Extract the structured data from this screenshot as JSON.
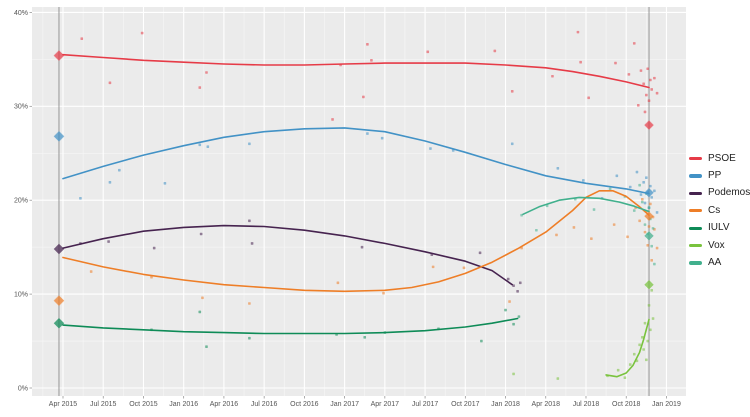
{
  "chart_data": {
    "type": "scatter",
    "subtype": "polling-average-with-trend-lines",
    "title": "",
    "xlabel": "",
    "ylabel": "",
    "x_unit": "months_since_Apr_2015",
    "ylim": [
      0,
      40
    ],
    "grid": "major and minor white gridlines on light-gray panel",
    "legend_position": "right",
    "panel_color": "#ebebeb",
    "gridline_color": "#ffffff",
    "election_line_color": "#8c8c8c",
    "axis_text_color": "#555555",
    "election_lines_months": [
      -0.3,
      43.7
    ],
    "y_ticks": [
      {
        "pct": 0,
        "label": "0%"
      },
      {
        "pct": 10,
        "label": "10%"
      },
      {
        "pct": 20,
        "label": "20%"
      },
      {
        "pct": 30,
        "label": "30%"
      },
      {
        "pct": 40,
        "label": "40%"
      }
    ],
    "x_ticks": [
      {
        "month": 0,
        "label": "Apr 2015"
      },
      {
        "month": 3,
        "label": "Jul 2015"
      },
      {
        "month": 6,
        "label": "Oct 2015"
      },
      {
        "month": 9,
        "label": "Jan 2016"
      },
      {
        "month": 12,
        "label": "Apr 2016"
      },
      {
        "month": 15,
        "label": "Jul 2016"
      },
      {
        "month": 18,
        "label": "Oct 2016"
      },
      {
        "month": 21,
        "label": "Jan 2017"
      },
      {
        "month": 24,
        "label": "Apr 2017"
      },
      {
        "month": 27,
        "label": "Jul 2017"
      },
      {
        "month": 30,
        "label": "Oct 2017"
      },
      {
        "month": 33,
        "label": "Jan 2018"
      },
      {
        "month": 36,
        "label": "Apr 2018"
      },
      {
        "month": 39,
        "label": "Jul 2018"
      },
      {
        "month": 42,
        "label": "Oct 2018"
      },
      {
        "month": 45,
        "label": "Jan 2019"
      }
    ],
    "series": [
      {
        "name": "PSOE",
        "color": "#e63b47",
        "trend": [
          [
            0,
            35.5
          ],
          [
            3,
            35.2
          ],
          [
            6,
            34.9
          ],
          [
            9,
            34.7
          ],
          [
            12,
            34.5
          ],
          [
            15,
            34.4
          ],
          [
            18,
            34.4
          ],
          [
            21,
            34.5
          ],
          [
            24,
            34.6
          ],
          [
            27,
            34.6
          ],
          [
            30,
            34.6
          ],
          [
            33,
            34.4
          ],
          [
            36,
            34.1
          ],
          [
            38,
            33.7
          ],
          [
            40,
            33.2
          ],
          [
            42,
            32.6
          ],
          [
            43.7,
            32.0
          ]
        ],
        "points": [
          [
            1.4,
            37.2
          ],
          [
            3.5,
            32.5
          ],
          [
            5.9,
            37.8
          ],
          [
            10.2,
            32.0
          ],
          [
            10.7,
            33.6
          ],
          [
            20.1,
            28.6
          ],
          [
            20.7,
            34.4
          ],
          [
            22.4,
            31.0
          ],
          [
            22.7,
            36.6
          ],
          [
            23.0,
            34.9
          ],
          [
            27.2,
            35.8
          ],
          [
            32.2,
            35.9
          ],
          [
            33.5,
            31.6
          ],
          [
            36.5,
            33.2
          ],
          [
            38.4,
            37.9
          ],
          [
            38.6,
            34.7
          ],
          [
            39.2,
            30.9
          ],
          [
            41.2,
            34.6
          ],
          [
            42.2,
            33.4
          ],
          [
            42.6,
            36.7
          ],
          [
            42.9,
            30.1
          ],
          [
            43.1,
            33.8
          ],
          [
            43.3,
            32.4
          ],
          [
            43.4,
            29.4
          ],
          [
            43.5,
            31.2
          ],
          [
            43.6,
            34.0
          ],
          [
            43.7,
            30.6
          ],
          [
            43.8,
            32.8
          ],
          [
            43.9,
            31.8
          ],
          [
            44.1,
            33.0
          ],
          [
            44.3,
            31.4
          ]
        ],
        "results": [
          [
            -0.3,
            35.4
          ],
          [
            43.7,
            28.0
          ]
        ]
      },
      {
        "name": "PP",
        "color": "#4292c6",
        "trend": [
          [
            0,
            22.3
          ],
          [
            3,
            23.6
          ],
          [
            6,
            24.8
          ],
          [
            9,
            25.8
          ],
          [
            12,
            26.7
          ],
          [
            15,
            27.3
          ],
          [
            18,
            27.6
          ],
          [
            21,
            27.7
          ],
          [
            24,
            27.3
          ],
          [
            27,
            26.3
          ],
          [
            30,
            25.1
          ],
          [
            33,
            23.8
          ],
          [
            36,
            22.6
          ],
          [
            39,
            21.8
          ],
          [
            42,
            21.2
          ],
          [
            43.7,
            20.7
          ]
        ],
        "points": [
          [
            1.3,
            20.2
          ],
          [
            3.5,
            21.9
          ],
          [
            4.2,
            23.2
          ],
          [
            7.6,
            21.8
          ],
          [
            10.2,
            25.9
          ],
          [
            10.8,
            25.7
          ],
          [
            13.9,
            26.0
          ],
          [
            22.7,
            27.1
          ],
          [
            23.8,
            26.6
          ],
          [
            27.4,
            25.5
          ],
          [
            29.1,
            25.3
          ],
          [
            33.5,
            26.0
          ],
          [
            36.9,
            23.4
          ],
          [
            38.8,
            22.1
          ],
          [
            40.2,
            20.2
          ],
          [
            41.3,
            22.6
          ],
          [
            42.3,
            21.4
          ],
          [
            42.8,
            23.0
          ],
          [
            43.1,
            20.6
          ],
          [
            43.3,
            21.9
          ],
          [
            43.4,
            19.7
          ],
          [
            43.5,
            22.4
          ],
          [
            43.6,
            20.9
          ],
          [
            43.7,
            19.2
          ],
          [
            43.8,
            21.5
          ],
          [
            43.9,
            20.3
          ],
          [
            44.1,
            21.0
          ],
          [
            44.3,
            18.7
          ]
        ],
        "results": [
          [
            -0.3,
            26.8
          ],
          [
            43.7,
            20.8
          ]
        ]
      },
      {
        "name": "Podemos",
        "color": "#46234f",
        "trend": [
          [
            0,
            14.9
          ],
          [
            3,
            15.9
          ],
          [
            6,
            16.7
          ],
          [
            9,
            17.1
          ],
          [
            12,
            17.3
          ],
          [
            15,
            17.2
          ],
          [
            18,
            16.8
          ],
          [
            21,
            16.2
          ],
          [
            24,
            15.4
          ],
          [
            27,
            14.5
          ],
          [
            30,
            13.5
          ],
          [
            32,
            12.5
          ],
          [
            33.5,
            11.0
          ]
        ],
        "points": [
          [
            1.3,
            15.4
          ],
          [
            3.4,
            15.6
          ],
          [
            6.8,
            14.9
          ],
          [
            10.3,
            16.4
          ],
          [
            13.9,
            17.8
          ],
          [
            14.1,
            15.4
          ],
          [
            22.3,
            15.0
          ],
          [
            27.5,
            14.2
          ],
          [
            31.1,
            14.4
          ],
          [
            33.2,
            11.6
          ],
          [
            33.6,
            10.9
          ],
          [
            33.9,
            10.3
          ],
          [
            34.1,
            11.2
          ]
        ],
        "results": [
          [
            -0.3,
            14.8
          ]
        ]
      },
      {
        "name": "Cs",
        "color": "#ee7e27",
        "trend": [
          [
            0,
            13.9
          ],
          [
            3,
            12.9
          ],
          [
            6,
            12.1
          ],
          [
            9,
            11.5
          ],
          [
            12,
            11.0
          ],
          [
            15,
            10.7
          ],
          [
            18,
            10.4
          ],
          [
            21,
            10.3
          ],
          [
            24,
            10.4
          ],
          [
            26,
            10.7
          ],
          [
            28,
            11.3
          ],
          [
            30,
            12.2
          ],
          [
            32,
            13.4
          ],
          [
            34,
            14.9
          ],
          [
            36,
            16.6
          ],
          [
            38,
            18.9
          ],
          [
            39,
            20.3
          ],
          [
            40,
            21.0
          ],
          [
            41,
            21.0
          ],
          [
            42,
            20.4
          ],
          [
            43,
            19.3
          ],
          [
            43.7,
            18.4
          ]
        ],
        "points": [
          [
            2.1,
            12.4
          ],
          [
            6.6,
            11.8
          ],
          [
            10.4,
            9.6
          ],
          [
            13.9,
            9.0
          ],
          [
            20.5,
            11.2
          ],
          [
            23.9,
            10.1
          ],
          [
            27.6,
            12.9
          ],
          [
            29.9,
            12.8
          ],
          [
            33.3,
            9.2
          ],
          [
            34.2,
            14.9
          ],
          [
            36.8,
            16.3
          ],
          [
            38.1,
            17.1
          ],
          [
            39.4,
            15.9
          ],
          [
            41.1,
            17.4
          ],
          [
            42.1,
            16.1
          ],
          [
            42.7,
            19.2
          ],
          [
            43.0,
            17.8
          ],
          [
            43.2,
            20.1
          ],
          [
            43.4,
            16.6
          ],
          [
            43.5,
            18.8
          ],
          [
            43.6,
            15.2
          ],
          [
            43.7,
            17.2
          ],
          [
            43.8,
            19.6
          ],
          [
            43.9,
            13.6
          ],
          [
            44.0,
            18.2
          ],
          [
            44.1,
            16.9
          ],
          [
            44.3,
            14.9
          ]
        ],
        "results": [
          [
            -0.3,
            9.3
          ],
          [
            43.7,
            18.3
          ]
        ]
      },
      {
        "name": "IULV",
        "color": "#0e8b57",
        "trend": [
          [
            0,
            6.7
          ],
          [
            3,
            6.4
          ],
          [
            6,
            6.2
          ],
          [
            9,
            6.0
          ],
          [
            12,
            5.9
          ],
          [
            15,
            5.8
          ],
          [
            18,
            5.8
          ],
          [
            21,
            5.8
          ],
          [
            24,
            5.9
          ],
          [
            27,
            6.1
          ],
          [
            30,
            6.5
          ],
          [
            32,
            6.9
          ],
          [
            33.9,
            7.4
          ]
        ],
        "points": [
          [
            6.6,
            6.2
          ],
          [
            10.2,
            8.1
          ],
          [
            10.7,
            4.4
          ],
          [
            13.9,
            5.3
          ],
          [
            20.4,
            5.7
          ],
          [
            22.5,
            5.4
          ],
          [
            24.0,
            5.9
          ],
          [
            28.0,
            6.3
          ],
          [
            31.2,
            5.0
          ],
          [
            33.0,
            8.3
          ],
          [
            33.6,
            6.8
          ],
          [
            34.0,
            7.6
          ]
        ],
        "results": [
          [
            -0.3,
            6.9
          ]
        ]
      },
      {
        "name": "Vox",
        "color": "#79c33d",
        "trend": [
          [
            40.5,
            1.4
          ],
          [
            41.3,
            1.2
          ],
          [
            42,
            1.6
          ],
          [
            42.5,
            2.4
          ],
          [
            43,
            3.8
          ],
          [
            43.3,
            5.2
          ],
          [
            43.7,
            7.3
          ]
        ],
        "points": [
          [
            33.6,
            1.5
          ],
          [
            36.9,
            1.0
          ],
          [
            40.6,
            1.3
          ],
          [
            41.4,
            1.9
          ],
          [
            41.9,
            1.1
          ],
          [
            42.3,
            2.5
          ],
          [
            42.6,
            3.6
          ],
          [
            42.8,
            2.9
          ],
          [
            43.0,
            4.6
          ],
          [
            43.2,
            5.4
          ],
          [
            43.3,
            4.1
          ],
          [
            43.4,
            6.9
          ],
          [
            43.5,
            3.0
          ],
          [
            43.6,
            5.0
          ],
          [
            43.7,
            8.8
          ],
          [
            43.8,
            6.2
          ],
          [
            43.9,
            10.4
          ],
          [
            44.0,
            7.4
          ]
        ],
        "results": [
          [
            43.7,
            11.0
          ]
        ]
      },
      {
        "name": "AA",
        "color": "#41b08d",
        "trend": [
          [
            34.3,
            18.5
          ],
          [
            35.5,
            19.3
          ],
          [
            37,
            20.0
          ],
          [
            38.5,
            20.3
          ],
          [
            40,
            20.2
          ],
          [
            41.5,
            19.8
          ],
          [
            42.5,
            19.4
          ],
          [
            43.7,
            18.8
          ]
        ],
        "points": [
          [
            34.2,
            18.4
          ],
          [
            35.3,
            16.8
          ],
          [
            36.1,
            19.4
          ],
          [
            38.2,
            20.1
          ],
          [
            39.6,
            19.0
          ],
          [
            40.8,
            21.2
          ],
          [
            41.9,
            20.4
          ],
          [
            42.6,
            18.9
          ],
          [
            43.0,
            21.6
          ],
          [
            43.2,
            19.8
          ],
          [
            43.4,
            17.4
          ],
          [
            43.5,
            20.7
          ],
          [
            43.6,
            16.4
          ],
          [
            43.7,
            19.2
          ],
          [
            43.8,
            18.0
          ],
          [
            43.9,
            15.1
          ],
          [
            44.0,
            17.0
          ],
          [
            44.1,
            13.2
          ]
        ],
        "results": [
          [
            43.7,
            16.2
          ]
        ]
      }
    ]
  },
  "legend": {
    "items": [
      {
        "label": "PSOE",
        "color": "#e63b47"
      },
      {
        "label": "PP",
        "color": "#4292c6"
      },
      {
        "label": "Podemos",
        "color": "#46234f"
      },
      {
        "label": "Cs",
        "color": "#ee7e27"
      },
      {
        "label": "IULV",
        "color": "#0e8b57"
      },
      {
        "label": "Vox",
        "color": "#79c33d"
      },
      {
        "label": "AA",
        "color": "#41b08d"
      }
    ]
  }
}
